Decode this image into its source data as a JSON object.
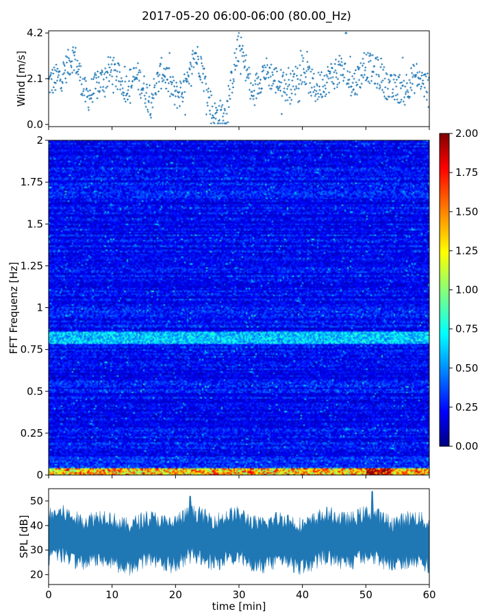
{
  "title": "2017-05-20 06:00-06:00 (80.00_Hz)",
  "chart_data": [
    {
      "type": "scatter",
      "panel": "wind",
      "ylabel": "Wind [m/s]",
      "xlim": [
        0,
        60
      ],
      "ylim": [
        -0.1,
        4.3
      ],
      "yticks": [
        0.0,
        2.1,
        4.2
      ],
      "ytick_labels": [
        "0.0",
        "2.1",
        "4.2"
      ],
      "xticks": [
        0,
        10,
        20,
        30,
        40,
        50,
        60
      ],
      "marker": "+",
      "color": "#1f77b4",
      "profile_x": [
        0,
        2,
        4,
        6,
        8,
        10,
        12,
        14,
        16,
        18,
        20,
        22,
        23,
        24,
        26,
        28,
        29,
        30,
        31,
        32,
        34,
        36,
        38,
        40,
        42,
        44,
        46,
        48,
        50,
        52,
        54,
        56,
        58,
        60
      ],
      "profile_y": [
        1.9,
        2.2,
        3.2,
        1.2,
        1.9,
        2.5,
        1.7,
        2.2,
        1.1,
        2.5,
        1.3,
        1.8,
        3.3,
        2.7,
        0.4,
        0.5,
        2.2,
        3.6,
        2.8,
        1.3,
        2.5,
        2.0,
        1.6,
        2.6,
        1.6,
        2.1,
        2.5,
        1.8,
        2.7,
        2.3,
        1.6,
        1.7,
        2.2,
        1.6
      ],
      "peak_y": 4.2
    },
    {
      "type": "heatmap",
      "panel": "spectrogram",
      "ylabel": "FFT Frequenz [Hz]",
      "xlim": [
        0,
        60
      ],
      "ylim": [
        0,
        2
      ],
      "yticks": [
        0,
        0.25,
        0.5,
        0.75,
        1,
        1.25,
        1.5,
        1.75,
        2
      ],
      "ytick_labels": [
        "0",
        "0.25",
        "0.5",
        "0.75",
        "1",
        "1.25",
        "1.5",
        "1.75",
        "2"
      ],
      "xticks": [
        0,
        10,
        20,
        30,
        40,
        50,
        60
      ],
      "colormap": "jet",
      "colorbar": {
        "vmin": 0.0,
        "vmax": 2.0,
        "ticks": [
          0.0,
          0.25,
          0.5,
          0.75,
          1.0,
          1.25,
          1.5,
          1.75,
          2.0
        ],
        "tick_labels": [
          "0.00",
          "0.25",
          "0.50",
          "0.75",
          "1.00",
          "1.25",
          "1.50",
          "1.75",
          "2.00"
        ]
      },
      "background_level": 0.3,
      "features": [
        {
          "freq_hz": [
            0.0,
            0.04
          ],
          "level": 1.5
        },
        {
          "freq_hz": [
            0.78,
            0.86
          ],
          "level": 0.75
        },
        {
          "time_min": [
            50,
            54
          ],
          "freq_hz": [
            0.0,
            0.04
          ],
          "level": 2.0
        }
      ]
    },
    {
      "type": "area",
      "panel": "spl",
      "ylabel": "SPL [dB]",
      "xlabel": "time [min]",
      "xlim": [
        0,
        60
      ],
      "ylim": [
        16,
        55
      ],
      "yticks": [
        20,
        30,
        40,
        50
      ],
      "ytick_labels": [
        "20",
        "30",
        "40",
        "50"
      ],
      "xticks": [
        0,
        10,
        20,
        30,
        40,
        50,
        60
      ],
      "xtick_labels": [
        "0",
        "10",
        "20",
        "30",
        "40",
        "50",
        "60"
      ],
      "color": "#1f77b4",
      "mean_db": 34,
      "range_db": [
        22,
        46
      ],
      "spikes": [
        {
          "time_min": 22.3,
          "peak_db": 52
        },
        {
          "time_min": 51.0,
          "peak_db": 54
        }
      ]
    }
  ]
}
